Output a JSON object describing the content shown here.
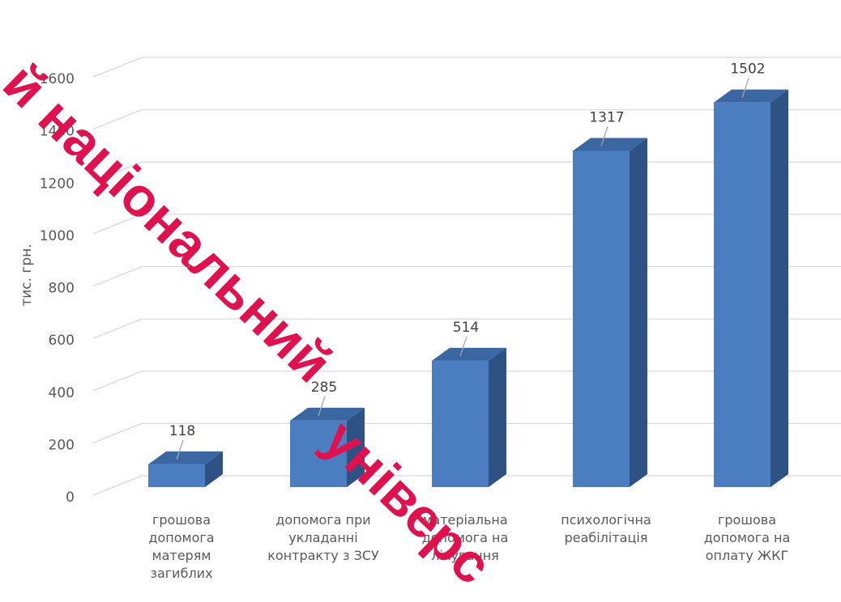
{
  "chart_data": {
    "type": "bar",
    "categories": [
      [
        "грошова",
        "допомога",
        "матерям",
        "загиблих"
      ],
      [
        "допомога при",
        "укладанні",
        "контракту з ЗСУ"
      ],
      [
        "матеріальна",
        "допомога на",
        "лікування"
      ],
      [
        "психологічна",
        "реабілітація"
      ],
      [
        "грошова",
        "допомога на",
        "оплату ЖКГ"
      ]
    ],
    "values": [
      118,
      285,
      514,
      1317,
      1502
    ],
    "ylabel": "тис. грн.",
    "ylim": [
      0,
      1600
    ],
    "yticks": [
      "0",
      "200",
      "400",
      "600",
      "800",
      "1000",
      "1200",
      "1400",
      "1600"
    ],
    "grid": true,
    "bar_color": "#4a7ec0",
    "bar_side_color": "#2f5284",
    "bar_top_color": "#3a66a2"
  },
  "watermark": {
    "line1": "й національний",
    "line2": "універс",
    "color": "#e0114f"
  }
}
